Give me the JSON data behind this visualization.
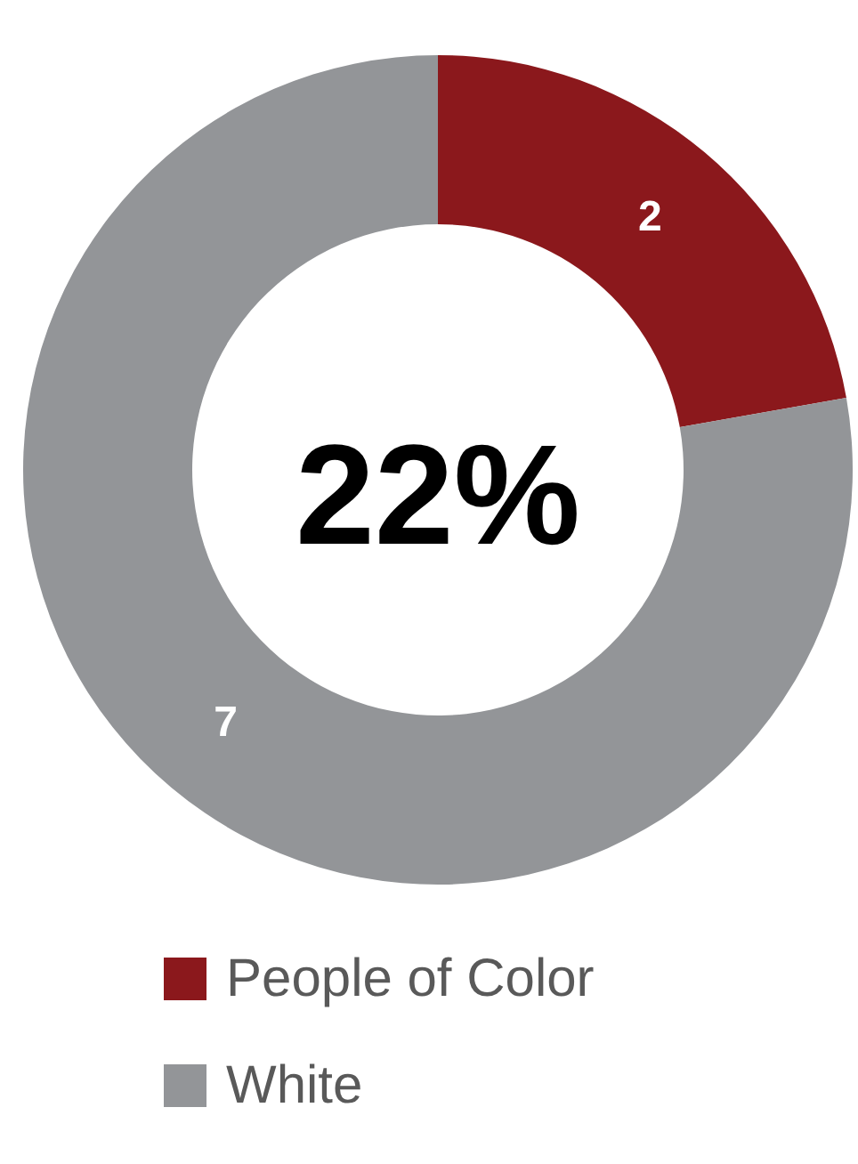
{
  "chart_data": {
    "type": "donut",
    "categories": [
      "People of Color",
      "White"
    ],
    "values": [
      2,
      7
    ],
    "colors": [
      "#8b181c",
      "#939598"
    ],
    "data_labels": true,
    "legend": "bottom",
    "annotations": [
      "22%"
    ]
  }
}
